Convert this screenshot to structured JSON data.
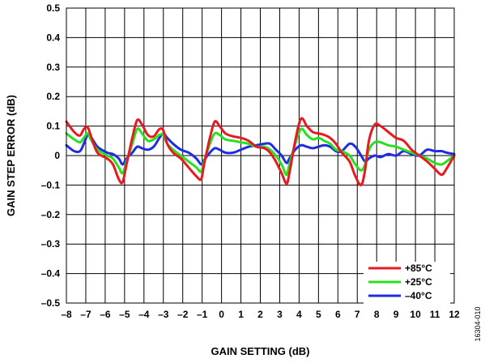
{
  "chart_data": {
    "type": "line",
    "xlabel": "GAIN SETTING (dB)",
    "ylabel": "GAIN STEP ERROR (dB)",
    "xlim": [
      -8,
      12
    ],
    "ylim": [
      -0.5,
      0.5
    ],
    "x_ticks": [
      -8,
      -7,
      -6,
      -5,
      -4,
      -3,
      -2,
      -1,
      0,
      1,
      2,
      3,
      4,
      5,
      6,
      7,
      8,
      9,
      10,
      11,
      12
    ],
    "x_tick_labels": [
      "–8",
      "–7",
      "–6",
      "–5",
      "–4",
      "–3",
      "–2",
      "–1",
      "0",
      "1",
      "2",
      "3",
      "4",
      "5",
      "6",
      "7",
      "8",
      "9",
      "10",
      "11",
      "12"
    ],
    "y_ticks": [
      -0.5,
      -0.4,
      -0.3,
      -0.2,
      -0.1,
      0,
      0.1,
      0.2,
      0.3,
      0.4,
      0.5
    ],
    "y_tick_labels": [
      "–0.5",
      "–0.4",
      "–0.3",
      "–0.2",
      "–0.1",
      "0",
      "0.1",
      "0.2",
      "0.3",
      "0.4",
      "0.5"
    ],
    "grid": true,
    "legend_position": "bottom-right",
    "figure_id": "16304-010",
    "series": [
      {
        "name": "+85°C",
        "color": "#e8191f",
        "points": [
          [
            -8,
            0.115
          ],
          [
            -7.6,
            0.08
          ],
          [
            -7.3,
            0.068
          ],
          [
            -7.1,
            0.09
          ],
          [
            -6.9,
            0.095
          ],
          [
            -6.7,
            0.06
          ],
          [
            -6.4,
            0.01
          ],
          [
            -5.9,
            -0.01
          ],
          [
            -5.6,
            -0.03
          ],
          [
            -5.3,
            -0.08
          ],
          [
            -5.1,
            -0.09
          ],
          [
            -4.9,
            -0.03
          ],
          [
            -4.6,
            0.06
          ],
          [
            -4.35,
            0.12
          ],
          [
            -4.1,
            0.105
          ],
          [
            -3.8,
            0.07
          ],
          [
            -3.5,
            0.065
          ],
          [
            -3.2,
            0.09
          ],
          [
            -3.0,
            0.085
          ],
          [
            -2.8,
            0.04
          ],
          [
            -2.5,
            0.01
          ],
          [
            -2.1,
            -0.01
          ],
          [
            -1.7,
            -0.04
          ],
          [
            -1.3,
            -0.07
          ],
          [
            -1.05,
            -0.08
          ],
          [
            -0.9,
            -0.03
          ],
          [
            -0.6,
            0.06
          ],
          [
            -0.35,
            0.115
          ],
          [
            -0.1,
            0.1
          ],
          [
            0.2,
            0.075
          ],
          [
            0.6,
            0.065
          ],
          [
            1.0,
            0.06
          ],
          [
            1.4,
            0.05
          ],
          [
            1.8,
            0.03
          ],
          [
            2.2,
            0.025
          ],
          [
            2.5,
            0.01
          ],
          [
            2.8,
            -0.02
          ],
          [
            3.1,
            -0.06
          ],
          [
            3.35,
            -0.095
          ],
          [
            3.5,
            -0.06
          ],
          [
            3.8,
            0.05
          ],
          [
            4.1,
            0.125
          ],
          [
            4.4,
            0.1
          ],
          [
            4.7,
            0.08
          ],
          [
            5.0,
            0.075
          ],
          [
            5.3,
            0.07
          ],
          [
            5.6,
            0.06
          ],
          [
            5.9,
            0.04
          ],
          [
            6.2,
            0.01
          ],
          [
            6.6,
            -0.02
          ],
          [
            6.9,
            -0.07
          ],
          [
            7.2,
            -0.1
          ],
          [
            7.4,
            -0.05
          ],
          [
            7.6,
            0.05
          ],
          [
            7.9,
            0.105
          ],
          [
            8.2,
            0.1
          ],
          [
            8.6,
            0.08
          ],
          [
            9.0,
            0.06
          ],
          [
            9.4,
            0.05
          ],
          [
            9.8,
            0.02
          ],
          [
            10.2,
            0.0
          ],
          [
            10.6,
            -0.02
          ],
          [
            11.0,
            -0.045
          ],
          [
            11.35,
            -0.065
          ],
          [
            11.6,
            -0.045
          ],
          [
            12,
            0.0
          ]
        ]
      },
      {
        "name": "+25°C",
        "color": "#28e020",
        "points": [
          [
            -8,
            0.075
          ],
          [
            -7.6,
            0.055
          ],
          [
            -7.3,
            0.045
          ],
          [
            -7.1,
            0.06
          ],
          [
            -6.9,
            0.075
          ],
          [
            -6.7,
            0.05
          ],
          [
            -6.4,
            0.02
          ],
          [
            -5.9,
            0.0
          ],
          [
            -5.6,
            -0.01
          ],
          [
            -5.3,
            -0.04
          ],
          [
            -5.1,
            -0.06
          ],
          [
            -4.9,
            -0.02
          ],
          [
            -4.6,
            0.04
          ],
          [
            -4.35,
            0.09
          ],
          [
            -4.1,
            0.075
          ],
          [
            -3.8,
            0.05
          ],
          [
            -3.5,
            0.055
          ],
          [
            -3.2,
            0.07
          ],
          [
            -3.0,
            0.07
          ],
          [
            -2.8,
            0.04
          ],
          [
            -2.5,
            0.02
          ],
          [
            -2.1,
            0.0
          ],
          [
            -1.7,
            -0.02
          ],
          [
            -1.3,
            -0.04
          ],
          [
            -1.05,
            -0.055
          ],
          [
            -0.9,
            -0.02
          ],
          [
            -0.6,
            0.04
          ],
          [
            -0.35,
            0.075
          ],
          [
            -0.1,
            0.07
          ],
          [
            0.2,
            0.055
          ],
          [
            0.6,
            0.05
          ],
          [
            1.0,
            0.045
          ],
          [
            1.4,
            0.04
          ],
          [
            1.8,
            0.03
          ],
          [
            2.2,
            0.03
          ],
          [
            2.5,
            0.02
          ],
          [
            2.8,
            0.0
          ],
          [
            3.1,
            -0.03
          ],
          [
            3.35,
            -0.065
          ],
          [
            3.5,
            -0.03
          ],
          [
            3.8,
            0.04
          ],
          [
            4.1,
            0.09
          ],
          [
            4.4,
            0.07
          ],
          [
            4.7,
            0.055
          ],
          [
            5.0,
            0.06
          ],
          [
            5.3,
            0.05
          ],
          [
            5.6,
            0.04
          ],
          [
            5.9,
            0.02
          ],
          [
            6.2,
            0.015
          ],
          [
            6.6,
            0.0
          ],
          [
            6.9,
            -0.03
          ],
          [
            7.2,
            -0.05
          ],
          [
            7.4,
            -0.03
          ],
          [
            7.6,
            0.02
          ],
          [
            7.9,
            0.045
          ],
          [
            8.2,
            0.045
          ],
          [
            8.6,
            0.035
          ],
          [
            9.0,
            0.03
          ],
          [
            9.4,
            0.02
          ],
          [
            9.8,
            0.01
          ],
          [
            10.2,
            0.0
          ],
          [
            10.6,
            -0.01
          ],
          [
            11.0,
            -0.025
          ],
          [
            11.35,
            -0.03
          ],
          [
            11.6,
            -0.02
          ],
          [
            12,
            0.0
          ]
        ]
      },
      {
        "name": "–40°C",
        "color": "#1f2de0",
        "points": [
          [
            -8,
            0.035
          ],
          [
            -7.6,
            0.015
          ],
          [
            -7.3,
            0.015
          ],
          [
            -7.1,
            0.04
          ],
          [
            -6.9,
            0.07
          ],
          [
            -6.7,
            0.06
          ],
          [
            -6.4,
            0.03
          ],
          [
            -5.9,
            0.01
          ],
          [
            -5.6,
            0.005
          ],
          [
            -5.3,
            -0.01
          ],
          [
            -5.1,
            -0.03
          ],
          [
            -4.9,
            -0.01
          ],
          [
            -4.6,
            0.01
          ],
          [
            -4.35,
            0.03
          ],
          [
            -4.1,
            0.025
          ],
          [
            -3.8,
            0.02
          ],
          [
            -3.5,
            0.03
          ],
          [
            -3.2,
            0.06
          ],
          [
            -3.0,
            0.075
          ],
          [
            -2.8,
            0.06
          ],
          [
            -2.5,
            0.04
          ],
          [
            -2.1,
            0.02
          ],
          [
            -1.7,
            0.01
          ],
          [
            -1.3,
            -0.01
          ],
          [
            -1.05,
            -0.03
          ],
          [
            -0.9,
            -0.015
          ],
          [
            -0.6,
            0.01
          ],
          [
            -0.35,
            0.025
          ],
          [
            -0.1,
            0.02
          ],
          [
            0.2,
            0.01
          ],
          [
            0.6,
            0.01
          ],
          [
            1.0,
            0.02
          ],
          [
            1.4,
            0.03
          ],
          [
            1.8,
            0.035
          ],
          [
            2.2,
            0.04
          ],
          [
            2.5,
            0.04
          ],
          [
            2.8,
            0.02
          ],
          [
            3.1,
            0.0
          ],
          [
            3.35,
            -0.025
          ],
          [
            3.5,
            -0.01
          ],
          [
            3.8,
            0.02
          ],
          [
            4.1,
            0.035
          ],
          [
            4.4,
            0.03
          ],
          [
            4.7,
            0.025
          ],
          [
            5.0,
            0.03
          ],
          [
            5.3,
            0.035
          ],
          [
            5.6,
            0.03
          ],
          [
            5.9,
            0.015
          ],
          [
            6.2,
            0.015
          ],
          [
            6.6,
            0.04
          ],
          [
            6.9,
            0.03
          ],
          [
            7.2,
            0.0
          ],
          [
            7.4,
            -0.02
          ],
          [
            7.6,
            -0.01
          ],
          [
            7.9,
            0.0
          ],
          [
            8.2,
            -0.005
          ],
          [
            8.6,
            0.005
          ],
          [
            9.0,
            0.0
          ],
          [
            9.4,
            0.015
          ],
          [
            9.8,
            0.005
          ],
          [
            10.2,
            0.0
          ],
          [
            10.6,
            0.02
          ],
          [
            11.0,
            0.015
          ],
          [
            11.35,
            0.015
          ],
          [
            11.6,
            0.01
          ],
          [
            12,
            0.005
          ]
        ]
      }
    ]
  }
}
